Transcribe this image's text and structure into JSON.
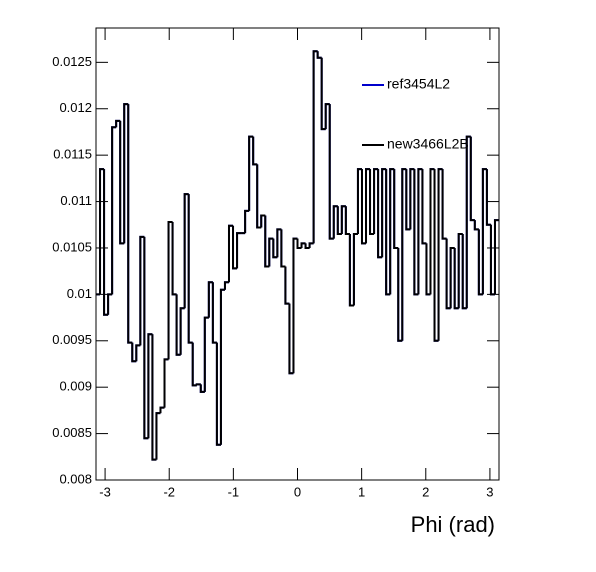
{
  "chart_data": {
    "type": "histogram",
    "x_label": "Phi (rad)",
    "xlim": [
      -3.1416,
      3.1416
    ],
    "xticks": [
      -3,
      -2,
      -1,
      0,
      1,
      2,
      3
    ],
    "ylim": [
      0.008,
      0.01287
    ],
    "yticks": [
      0.008,
      0.0085,
      0.009,
      0.0095,
      0.01,
      0.0105,
      0.011,
      0.0115,
      0.012,
      0.0125
    ],
    "legend": "top-right",
    "series": [
      {
        "name": "ref3454L2",
        "color": "#0000cc",
        "values": [
          0.01,
          0.01135,
          0.00978,
          0.01,
          0.0118,
          0.01187,
          0.01055,
          0.01205,
          0.00948,
          0.00928,
          0.00945,
          0.01062,
          0.00845,
          0.00957,
          0.00822,
          0.00872,
          0.00878,
          0.0093,
          0.01078,
          0.01,
          0.00935,
          0.00985,
          0.01108,
          0.00948,
          0.00902,
          0.00903,
          0.00895,
          0.00975,
          0.01013,
          0.00948,
          0.00838,
          0.01005,
          0.01013,
          0.01074,
          0.01028,
          0.01066,
          0.01066,
          0.0109,
          0.0117,
          0.0114,
          0.01072,
          0.01085,
          0.0103,
          0.0106,
          0.0104,
          0.0107,
          0.0103,
          0.0099,
          0.00915,
          0.0106,
          0.0105,
          0.01055,
          0.0105,
          0.01055,
          0.01262,
          0.01255,
          0.01178,
          0.01205,
          0.0106,
          0.01095,
          0.01065,
          0.01095,
          0.01065,
          0.00988,
          0.01065,
          0.01135,
          0.01055,
          0.01135,
          0.01065,
          0.01135,
          0.0104,
          0.01135,
          0.01,
          0.01135,
          0.0105,
          0.0095,
          0.01135,
          0.0107,
          0.01135,
          0.01,
          0.01135,
          0.01055,
          0.01,
          0.01135,
          0.0095,
          0.01135,
          0.0106,
          0.00985,
          0.0105,
          0.00985,
          0.01065,
          0.00985,
          0.0117,
          0.0108,
          0.0107,
          0.01,
          0.01135,
          0.01075,
          0.01,
          0.0108
        ]
      },
      {
        "name": "new3466L2B",
        "color": "#000000",
        "values": [
          0.01,
          0.01135,
          0.00978,
          0.01,
          0.0118,
          0.01187,
          0.01055,
          0.01205,
          0.00948,
          0.00928,
          0.00945,
          0.01062,
          0.00845,
          0.00957,
          0.00822,
          0.00872,
          0.00878,
          0.0093,
          0.01078,
          0.01,
          0.00935,
          0.00985,
          0.01108,
          0.00948,
          0.00902,
          0.00903,
          0.00895,
          0.00975,
          0.01013,
          0.00948,
          0.00838,
          0.01005,
          0.01013,
          0.01074,
          0.01028,
          0.01066,
          0.01066,
          0.0109,
          0.0117,
          0.0114,
          0.01072,
          0.01085,
          0.0103,
          0.0106,
          0.0104,
          0.0107,
          0.0103,
          0.0099,
          0.00915,
          0.0106,
          0.0105,
          0.01055,
          0.0105,
          0.01055,
          0.01262,
          0.01255,
          0.01178,
          0.01205,
          0.0106,
          0.01095,
          0.01065,
          0.01095,
          0.01065,
          0.00988,
          0.01065,
          0.01135,
          0.01055,
          0.01135,
          0.01065,
          0.01135,
          0.0104,
          0.01135,
          0.01,
          0.01135,
          0.0105,
          0.0095,
          0.01135,
          0.0107,
          0.01135,
          0.01,
          0.01135,
          0.01055,
          0.01,
          0.01135,
          0.0095,
          0.01135,
          0.0106,
          0.00985,
          0.0105,
          0.00985,
          0.01065,
          0.00985,
          0.0117,
          0.0108,
          0.0107,
          0.01,
          0.01135,
          0.01075,
          0.01,
          0.0108
        ]
      }
    ]
  }
}
